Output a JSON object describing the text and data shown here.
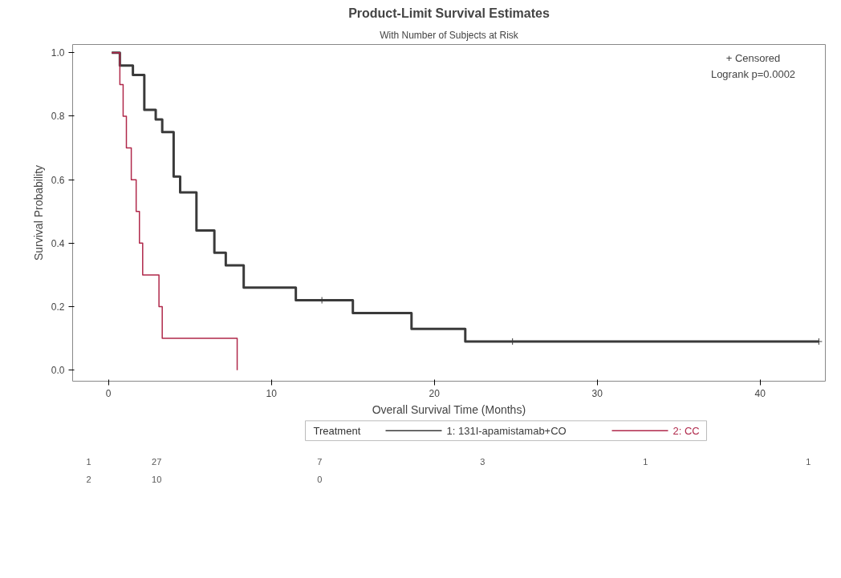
{
  "chart_data": {
    "type": "step",
    "title": "Product-Limit Survival Estimates",
    "subtitle": "With Number of Subjects at Risk",
    "xlabel": "Overall Survival Time (Months)",
    "ylabel": "Survival Probability",
    "legend_title": "Treatment",
    "legend": "bottom",
    "grid": false,
    "marker": "none",
    "line_style": "solid",
    "xlim": [
      -2.2,
      44
    ],
    "ylim": [
      -0.035,
      1.026
    ],
    "xticks": [
      0,
      10,
      20,
      30,
      40
    ],
    "yticks": [
      {
        "value": 0,
        "label": "0.0"
      },
      {
        "value": 0.2,
        "label": "0.2"
      },
      {
        "value": 0.4,
        "label": "0.4"
      },
      {
        "value": 0.6,
        "label": "0.6"
      },
      {
        "value": 0.8,
        "label": "0.8"
      },
      {
        "value": 1,
        "label": "1.0"
      }
    ],
    "series": [
      {
        "name": "1: 131I-apamistamab+CO",
        "color": "#3a3a3a",
        "x": [
          0.2,
          0.7,
          1.5,
          2.2,
          2.9,
          3.3,
          4.0,
          4.4,
          5.4,
          6.5,
          7.2,
          8.3,
          11.5,
          15.0,
          18.6,
          21.9,
          43.6
        ],
        "values": [
          1,
          0.96,
          0.93,
          0.82,
          0.79,
          0.75,
          0.61,
          0.56,
          0.44,
          0.37,
          0.33,
          0.26,
          0.22,
          0.18,
          0.13,
          0.09,
          0.09
        ]
      },
      {
        "name": "2: CC",
        "color": "#b0284a",
        "x": [
          0.2,
          0.7,
          0.9,
          1.1,
          1.4,
          1.7,
          1.9,
          2.1,
          3.1,
          3.3,
          7.9
        ],
        "values": [
          1,
          0.9,
          0.8,
          0.7,
          0.6,
          0.5,
          0.4,
          0.3,
          0.2,
          0.1,
          0
        ]
      },
      {
        "type": "scatter",
        "marker": "cross",
        "color": "#3a3a3a",
        "x": [
          13.1,
          24.8,
          43.6
        ],
        "values": [
          0.22,
          0.09,
          0.09
        ]
      }
    ],
    "annotations": [
      "+ Censored",
      "Logrank p=0.0002",
      "1",
      "27",
      "7",
      "3",
      "1",
      "1",
      "2",
      "10",
      "0"
    ]
  }
}
